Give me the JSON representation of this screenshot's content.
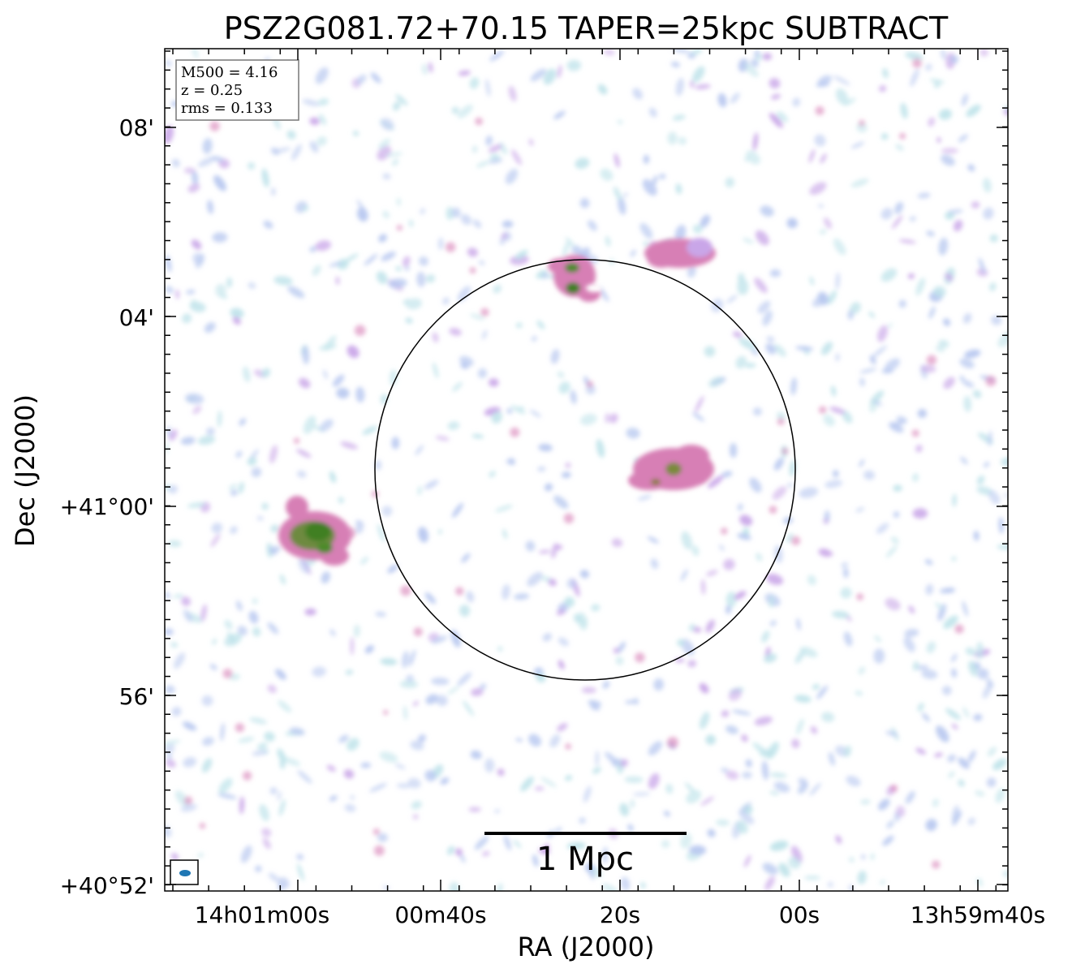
{
  "title": "PSZ2G081.72+70.15 TAPER=25kpc SUBTRACT",
  "axes": {
    "xlabel": "RA (J2000)",
    "ylabel": "Dec (J2000)",
    "xticks": [
      "14h01m00s",
      "00m40s",
      "20s",
      "00s",
      "13h59m40s"
    ],
    "yticks": [
      "08'",
      "04'",
      "+41°00'",
      "56'",
      "+40°52'"
    ]
  },
  "info_box": {
    "line1": "M500 = 4.16",
    "line2": "z = 0.25",
    "line3": "rms = 0.133"
  },
  "scalebar": {
    "label": "1 Mpc"
  },
  "colors": {
    "faint_cyan": "#bfe3ea",
    "faint_blue": "#b8c8f0",
    "violet": "#c9a6e8",
    "pink": "#d77fb5",
    "green": "#4e8a2a",
    "beam": "#1f77b4"
  },
  "sources": [
    {
      "name": "west-bright-source",
      "peak": "green"
    },
    {
      "name": "north-source-on-circle",
      "peak": "green"
    },
    {
      "name": "northeast-pink-source",
      "peak": "pink"
    },
    {
      "name": "central-east-source",
      "peak": "pink-green"
    }
  ]
}
